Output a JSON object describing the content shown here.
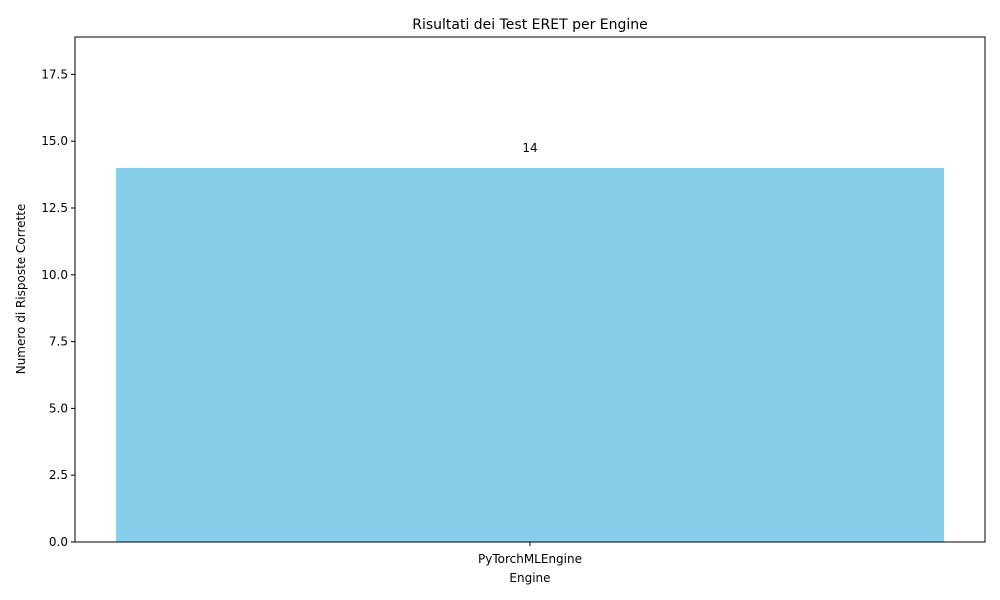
{
  "chart_data": {
    "type": "bar",
    "title": "Risultati dei Test ERET per Engine",
    "xlabel": "Engine",
    "ylabel": "Numero di Risposte Corrette",
    "categories": [
      "PyTorchMLEngine"
    ],
    "values": [
      14
    ],
    "data_labels": [
      "14"
    ],
    "ylim": [
      0,
      18.9
    ],
    "yticks": [
      0.0,
      2.5,
      5.0,
      7.5,
      10.0,
      12.5,
      15.0,
      17.5
    ],
    "ytick_labels": [
      "0.0",
      "2.5",
      "5.0",
      "7.5",
      "10.0",
      "12.5",
      "15.0",
      "17.5"
    ],
    "grid": false,
    "legend": "none",
    "bar_color": "#87CEEB"
  }
}
